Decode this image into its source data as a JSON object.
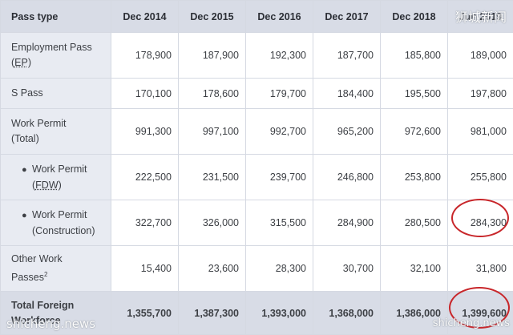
{
  "table": {
    "headers": [
      "Pass type",
      "Dec 2014",
      "Dec 2015",
      "Dec 2016",
      "Dec 2017",
      "Dec 2018",
      "Jun 2019"
    ],
    "rows": [
      {
        "type_line1": "Employment Pass",
        "type_line2_prefix": "(",
        "type_abbr": "EP",
        "type_line2_suffix": ")",
        "values": [
          "178,900",
          "187,900",
          "192,300",
          "187,700",
          "185,800",
          "189,000"
        ]
      },
      {
        "type_line1": "S Pass",
        "values": [
          "170,100",
          "178,600",
          "179,700",
          "184,400",
          "195,500",
          "197,800"
        ]
      },
      {
        "type_line1": "Work Permit",
        "type_line2": "(Total)",
        "values": [
          "991,300",
          "997,100",
          "992,700",
          "965,200",
          "972,600",
          "981,000"
        ]
      },
      {
        "bullet": "●",
        "type_line1": "Work Permit",
        "type_line2_prefix": "(",
        "type_abbr": "FDW",
        "type_line2_suffix": ")",
        "values": [
          "222,500",
          "231,500",
          "239,700",
          "246,800",
          "253,800",
          "255,800"
        ]
      },
      {
        "bullet": "●",
        "type_line1": "Work Permit",
        "type_line2": "(Construction)",
        "values": [
          "322,700",
          "326,000",
          "315,500",
          "284,900",
          "280,500",
          "284,300"
        ]
      },
      {
        "type_line1": "Other Work",
        "type_line2": "Passes",
        "type_sup": "2",
        "values": [
          "15,400",
          "23,600",
          "28,300",
          "30,700",
          "32,100",
          "31,800"
        ]
      },
      {
        "type_line1": "Total Foreign",
        "type_line2": "Workforce",
        "values": [
          "1,355,700",
          "1,387,300",
          "1,393,000",
          "1,368,000",
          "1,386,000",
          "1,399,600"
        ]
      }
    ]
  },
  "annotations": {
    "circle_color": "#c8262a",
    "circled_values": [
      "284,300",
      "1,399,600"
    ]
  },
  "watermarks": {
    "top_right": "狮城新闻",
    "bottom_left": "shicheng.news",
    "bottom_right": "shicheng.news"
  },
  "colors": {
    "header_bg": "#d8dce6",
    "label_col_bg": "#e8ebf2",
    "border": "#d5d9e2",
    "text": "#3c3f44"
  }
}
